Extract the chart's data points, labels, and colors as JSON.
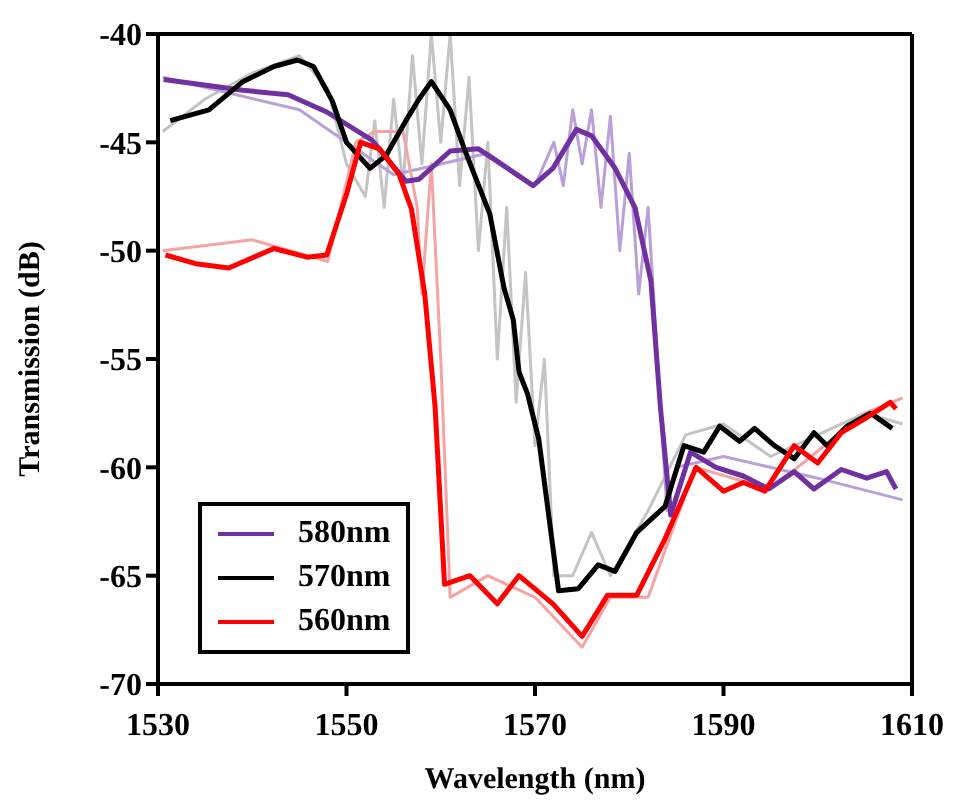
{
  "chart_data": {
    "type": "line",
    "xlabel": "Wavelength (nm)",
    "ylabel": "Transmission (dB)",
    "xlim": [
      1530,
      1610
    ],
    "xticks": [
      1530,
      1550,
      1570,
      1590,
      1610
    ],
    "ylim": [
      -70,
      -40
    ],
    "yticks": [
      -70,
      -65,
      -60,
      -55,
      -50,
      -45,
      -40
    ],
    "legend": "bottom left",
    "marker": "none",
    "line_style": "solid",
    "series": [
      {
        "color": "#c4c4c4",
        "x": [
          1530.5,
          1535,
          1540,
          1545,
          1548,
          1550,
          1552,
          1553,
          1554,
          1555,
          1556,
          1557,
          1558,
          1559,
          1560,
          1561,
          1562,
          1563,
          1564,
          1565,
          1566,
          1567,
          1568,
          1569,
          1570,
          1571,
          1572,
          1574,
          1576,
          1578,
          1582,
          1586,
          1590,
          1595,
          1600,
          1605,
          1609
        ],
        "values": [
          -44.5,
          -43,
          -41.8,
          -41,
          -42.5,
          -46,
          -47.5,
          -44,
          -48,
          -43,
          -47,
          -41,
          -46,
          -40,
          -45,
          -40,
          -47,
          -42,
          -50,
          -45,
          -55,
          -48,
          -57,
          -51,
          -59,
          -55,
          -65,
          -65,
          -63,
          -65,
          -62,
          -58.5,
          -58,
          -59.5,
          -58.5,
          -57.5,
          -58
        ]
      },
      {
        "color": "#b9a0d8",
        "x": [
          1530.5,
          1545,
          1555,
          1565,
          1570,
          1572,
          1573,
          1574,
          1575,
          1576,
          1577,
          1578,
          1579,
          1580,
          1581,
          1582,
          1583,
          1584,
          1585,
          1590,
          1600,
          1609
        ],
        "values": [
          -42,
          -43.5,
          -46.5,
          -45.5,
          -47,
          -45,
          -47,
          -43.5,
          -46,
          -43.5,
          -48,
          -43.8,
          -50,
          -45.5,
          -52,
          -48,
          -55,
          -62,
          -60,
          -59.5,
          -60.5,
          -61.5
        ]
      },
      {
        "color": "#f6a3a3",
        "x": [
          1530.5,
          1540,
          1548,
          1551,
          1553,
          1556,
          1557.5,
          1558,
          1559,
          1560,
          1561,
          1565,
          1570,
          1575,
          1578,
          1582,
          1587,
          1595,
          1605,
          1609
        ],
        "values": [
          -50,
          -49.5,
          -50.5,
          -45,
          -44.5,
          -44.5,
          -48,
          -52,
          -46,
          -55,
          -66,
          -65,
          -66,
          -68.3,
          -66,
          -66,
          -60,
          -61,
          -57.5,
          -56.8
        ]
      },
      {
        "name": "580nm",
        "color": "#7030a0",
        "x": [
          1530.6,
          1539,
          1543.8,
          1547.9,
          1552.7,
          1556.3,
          1557.7,
          1561,
          1564,
          1568.1,
          1569.8,
          1571.9,
          1574.4,
          1576,
          1578.5,
          1580.6,
          1582.3,
          1583.3,
          1584.4,
          1586.5,
          1589.2,
          1592.1,
          1594.8,
          1597.5,
          1599.6,
          1602.5,
          1605.2,
          1607.3,
          1608.3
        ],
        "values": [
          -42.1,
          -42.6,
          -42.8,
          -43.6,
          -44.9,
          -46.8,
          -46.7,
          -45.4,
          -45.3,
          -46.5,
          -47,
          -46.2,
          -44.4,
          -44.7,
          -46.2,
          -48,
          -51.4,
          -57.2,
          -62.2,
          -59.3,
          -60,
          -60.4,
          -61,
          -60.2,
          -61,
          -60.1,
          -60.5,
          -60.2,
          -61
        ]
      },
      {
        "name": "570nm",
        "color": "#000000",
        "x": [
          1531.3,
          1535.4,
          1539,
          1542.3,
          1544.8,
          1546.5,
          1548.5,
          1550,
          1552.5,
          1554.2,
          1556.3,
          1557.7,
          1559,
          1561,
          1562.5,
          1565.2,
          1566.7,
          1567.7,
          1568.3,
          1569.2,
          1570.4,
          1572.5,
          1574.6,
          1576.7,
          1578.5,
          1580.8,
          1583.8,
          1585.8,
          1587.9,
          1589.6,
          1591.7,
          1593.3,
          1595.4,
          1597.5,
          1599.6,
          1601,
          1603.1,
          1605.6,
          1607.9
        ],
        "values": [
          -44,
          -43.5,
          -42.2,
          -41.5,
          -41.2,
          -41.5,
          -43.1,
          -45,
          -46.2,
          -45.6,
          -44,
          -43,
          -42.2,
          -43.5,
          -45.3,
          -48.3,
          -51.7,
          -53.2,
          -55.6,
          -56.6,
          -58.7,
          -65.7,
          -65.6,
          -64.5,
          -64.8,
          -63,
          -61.8,
          -59,
          -59.3,
          -58.1,
          -58.8,
          -58.2,
          -59,
          -59.6,
          -58.4,
          -59,
          -58.1,
          -57.5,
          -58.2
        ]
      },
      {
        "name": "560nm",
        "color": "#ff0000",
        "x": [
          1530.8,
          1534,
          1537.5,
          1542.3,
          1545.8,
          1547.9,
          1550,
          1551.5,
          1553.5,
          1555.6,
          1556.9,
          1558.3,
          1559.4,
          1560.4,
          1563.1,
          1566,
          1568.3,
          1571.9,
          1575,
          1577.7,
          1580.8,
          1583.8,
          1587.1,
          1590,
          1592.1,
          1594.4,
          1597.5,
          1600,
          1602.5,
          1605.2,
          1607.7,
          1608.3
        ],
        "values": [
          -50.2,
          -50.6,
          -50.8,
          -49.9,
          -50.3,
          -50.2,
          -47.4,
          -45,
          -45.3,
          -46.5,
          -48.1,
          -52,
          -57.2,
          -65.4,
          -65,
          -66.3,
          -65,
          -66.3,
          -67.8,
          -65.9,
          -65.9,
          -63.3,
          -60,
          -61.1,
          -60.7,
          -61.1,
          -59,
          -59.8,
          -58.4,
          -57.7,
          -57,
          -57.3
        ]
      }
    ]
  }
}
